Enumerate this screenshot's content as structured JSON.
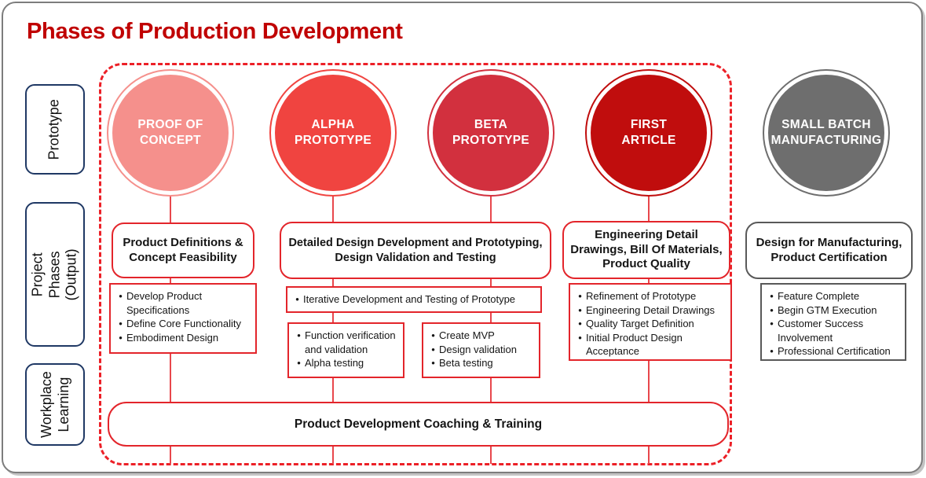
{
  "title": "Phases of Production Development",
  "row_labels": {
    "prototype": "Prototype",
    "project_phases": "Project Phases (Output)",
    "workplace": "Workplace Learning"
  },
  "circles": [
    {
      "label": "PROOF OF CONCEPT",
      "fill": "#F5908C"
    },
    {
      "label": "ALPHA PROTOTYPE",
      "fill": "#F04440"
    },
    {
      "label": "BETA PROTOTYPE",
      "fill": "#D2303E"
    },
    {
      "label": "FIRST ARTICLE",
      "fill": "#C00D0D"
    },
    {
      "label": "SMALL BATCH MANUFACTURING",
      "fill": "#6E6E6E"
    }
  ],
  "outputs": {
    "concept": {
      "header": "Product Definitions & Concept Feasibility",
      "bullets": [
        "Develop Product Specifications",
        "Define Core Functionality",
        "Embodiment Design"
      ]
    },
    "detailed_design": {
      "header": "Detailed Design Development and Prototyping, Design Validation and Testing",
      "wide_bullet": "Iterative Development and Testing of Prototype",
      "alpha_box": [
        "Function verification and validation",
        "Alpha testing"
      ],
      "beta_box": [
        "Create MVP",
        "Design validation",
        "Beta testing"
      ]
    },
    "engineering": {
      "header": "Engineering Detail Drawings, Bill Of Materials, Product Quality",
      "bullets": [
        "Refinement of Prototype",
        "Engineering Detail Drawings",
        "Quality Target Definition",
        "Initial Product Design Acceptance"
      ]
    },
    "manufacturing": {
      "header": "Design for Manufacturing, Product Certification",
      "bullets": [
        "Feature Complete",
        "Begin GTM Execution",
        "Customer Success Involvement",
        "Professional Certification"
      ]
    }
  },
  "coaching_label": "Product Development Coaching & Training",
  "colors": {
    "title_red": "#C00000",
    "accent_red": "#E3252B",
    "dashed_red": "#EC2027",
    "connector_red": "#E8474C",
    "gray_circle": "#6E6E6E",
    "gray_border": "#595959",
    "navy_border": "#1F3864"
  }
}
